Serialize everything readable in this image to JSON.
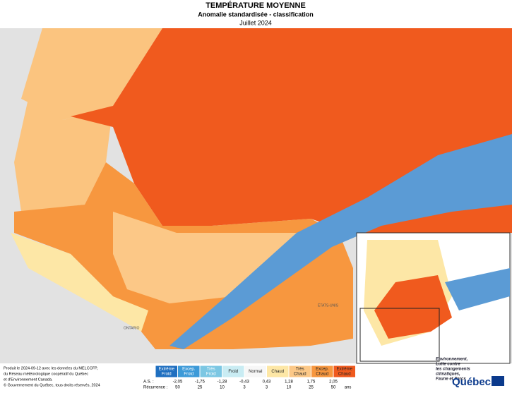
{
  "header": {
    "title": "TEMPÉRATURE MOYENNE",
    "subtitle": "Anomalie standardisée - classification",
    "date": "Juillet 2024"
  },
  "map_labels": {
    "ontario": "ONTARIO",
    "usa": "ÉTATS-UNIS"
  },
  "legend": {
    "classes": [
      {
        "lines": [
          "Extrême",
          "Froid"
        ],
        "color": "#1f6fc0"
      },
      {
        "lines": [
          "Excep.",
          "Froid"
        ],
        "color": "#3d9ad8"
      },
      {
        "lines": [
          "Très",
          "Froid"
        ],
        "color": "#7cc7e3"
      },
      {
        "lines": [
          "Froid"
        ],
        "color": "#c9ecf3"
      },
      {
        "lines": [
          "Normal"
        ],
        "color": "#f7f7f7"
      },
      {
        "lines": [
          "Chaud"
        ],
        "color": "#fde7a6"
      },
      {
        "lines": [
          "Très",
          "Chaud"
        ],
        "color": "#fcc887"
      },
      {
        "lines": [
          "Excep.",
          "Chaud"
        ],
        "color": "#f7973f"
      },
      {
        "lines": [
          "Extrême",
          "Chaud"
        ],
        "color": "#f05a1e"
      }
    ],
    "as_label": "A.S. :",
    "thresholds": [
      "-2,05",
      "-1,75",
      "-1,28",
      "-0,43",
      "0,43",
      "1,28",
      "1,75",
      "2,05"
    ],
    "recurrence_label": "Récurrence :",
    "recurrence": [
      "50",
      "25",
      "10",
      "3",
      "3",
      "10",
      "25",
      "50"
    ],
    "recurrence_unit": "ans"
  },
  "credits": [
    "Produit le 2024-09-12 avec les données du MELCCFP,",
    "du Réseau météorologique coopératif du Québec",
    "et d'Environnement Canada.",
    "© Gouvernement du Québec, tous droits réservés, 2024"
  ],
  "logo": {
    "lines": [
      "Environnement,",
      "Lutte contre",
      "les changements",
      "climatiques,",
      "Faune et Parcs"
    ],
    "name": "Québec"
  }
}
